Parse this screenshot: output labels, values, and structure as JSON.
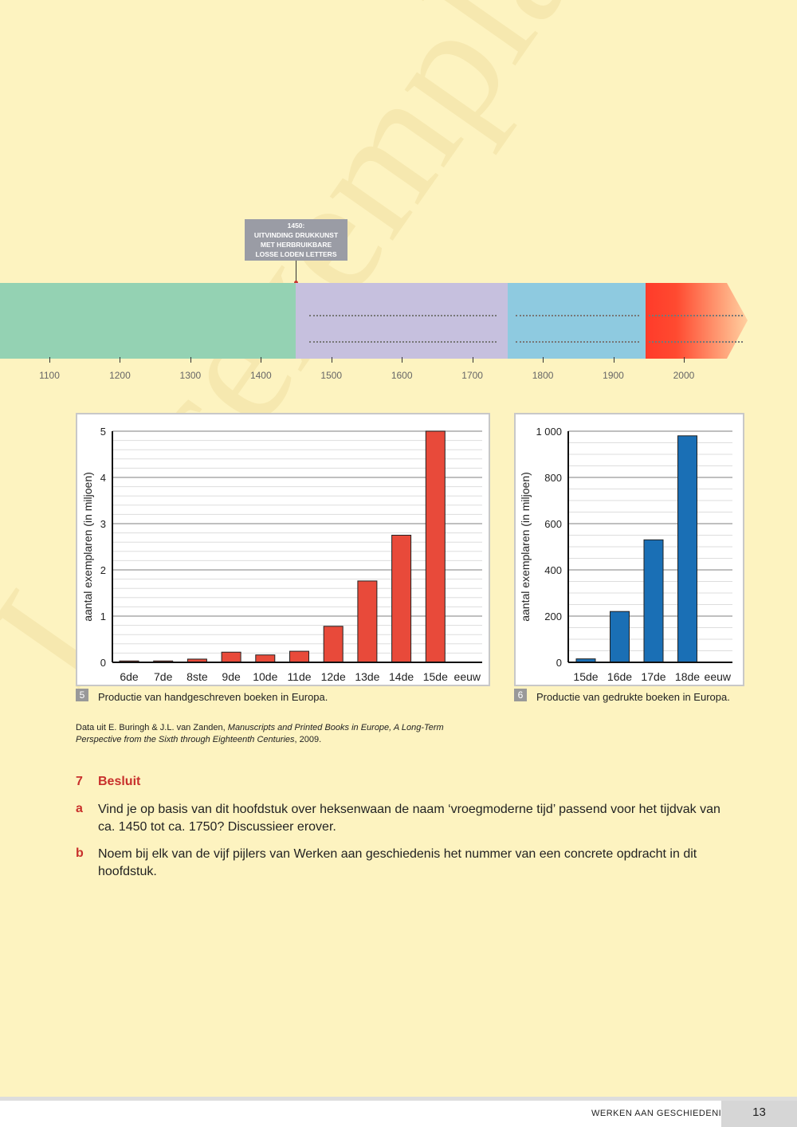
{
  "watermark": "Leesexemplaar",
  "timeline": {
    "callout": [
      "1450:",
      "UITVINDING DRUKKUNST",
      "MET HERBRUIKBARE",
      "LOSSE LODEN LETTERS"
    ],
    "years": [
      "1100",
      "1200",
      "1300",
      "1400",
      "1500",
      "1600",
      "1700",
      "1800",
      "1900",
      "2000"
    ],
    "band_colors": {
      "middeleeuwen": "#94d2b3",
      "vroegmodern": "#c6c0de",
      "modern": "#8ecae0",
      "hedendaags": "#ff3b2a"
    }
  },
  "chart_data": [
    {
      "type": "bar",
      "categories": [
        "6de",
        "7de",
        "8ste",
        "9de",
        "10de",
        "11de",
        "12de",
        "13de",
        "14de",
        "15de"
      ],
      "x_unit": "eeuw",
      "values": [
        0.03,
        0.03,
        0.07,
        0.22,
        0.16,
        0.24,
        0.78,
        1.76,
        2.75,
        5.0
      ],
      "ylabel": "aantal exemplaren (in miljoen)",
      "yticks": [
        "0",
        "1",
        "2",
        "3",
        "4",
        "5"
      ],
      "ylim": [
        0,
        5
      ],
      "grid": true,
      "color": "#e84a3a",
      "figure_number": "5",
      "caption": "Productie van handgeschreven boeken in Europa."
    },
    {
      "type": "bar",
      "categories": [
        "15de",
        "16de",
        "17de",
        "18de"
      ],
      "x_unit": "eeuw",
      "values": [
        15,
        220,
        530,
        980
      ],
      "ylabel": "aantal exemplaren (in miljoen)",
      "yticks": [
        "0",
        "200",
        "400",
        "600",
        "800",
        "1 000"
      ],
      "ylim": [
        0,
        1000
      ],
      "grid": true,
      "color": "#1a6fb5",
      "figure_number": "6",
      "caption": "Productie van gedrukte boeken in Europa."
    }
  ],
  "source": {
    "prefix": "Data uit E. Buringh & J.L. van Zanden, ",
    "title_line1": "Manuscripts and Printed Books in Europe, A Long-Term",
    "title_line2": "Perspective from the Sixth through Eighteenth Centuries",
    "suffix": ", 2009."
  },
  "exercise": {
    "number": "7",
    "title": "Besluit",
    "items": [
      {
        "letter": "a",
        "lines": [
          "Vind je op basis van dit hoofdstuk over heksenwaan de naam ‘vroegmoderne tijd’ passend voor het tijdvak van",
          "ca. 1450 tot ca. 1750? Discussieer erover."
        ]
      },
      {
        "letter": "b",
        "lines": [
          "Noem bij elk van de vijf pijlers van Werken aan geschiedenis het nummer van een concrete opdracht in dit",
          "hoofdstuk."
        ]
      }
    ]
  },
  "footer": {
    "book_title": "WERKEN AAN GESCHIEDENIS",
    "page_number": "13"
  }
}
